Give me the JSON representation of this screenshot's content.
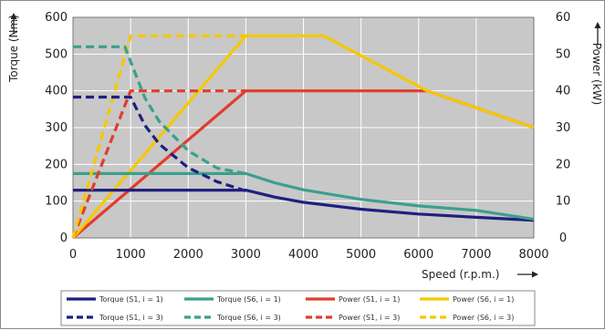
{
  "chart_data": {
    "type": "line",
    "xlabel": "Speed (r.p.m.)",
    "ylabel": "Torque (Nm)",
    "y2label": "Power (kW)",
    "xlim": [
      0,
      8000
    ],
    "ylim": [
      0,
      600
    ],
    "y2lim": [
      0,
      60
    ],
    "x_ticks": [
      "0",
      "1000",
      "2000",
      "3000",
      "4000",
      "5000",
      "6000",
      "7000",
      "8000"
    ],
    "y_ticks": [
      "0",
      "100",
      "200",
      "300",
      "400",
      "500",
      "600"
    ],
    "y2_ticks": [
      "0",
      "10",
      "20",
      "30",
      "40",
      "50",
      "60"
    ],
    "grid": true,
    "plot_background": "#c8c8c8",
    "legend_position": "bottom",
    "series": [
      {
        "name": "Torque (S1, i = 1)",
        "axis": "left",
        "color": "#1f1f80",
        "dash": "solid",
        "x": [
          0,
          3000,
          3500,
          4000,
          5000,
          6000,
          7000,
          8000
        ],
        "y": [
          130,
          130,
          111,
          97,
          78,
          65,
          56,
          48
        ]
      },
      {
        "name": "Torque (S6, i = 1)",
        "axis": "left",
        "color": "#3aa08c",
        "dash": "solid",
        "x": [
          0,
          3000,
          3500,
          4000,
          5000,
          6000,
          7000,
          8000
        ],
        "y": [
          175,
          175,
          150,
          131,
          105,
          87,
          75,
          51
        ]
      },
      {
        "name": "Power (S1, i = 1)",
        "axis": "right",
        "color": "#e23c2c",
        "dash": "solid",
        "x": [
          0,
          3000,
          6150,
          8000
        ],
        "y": [
          0,
          40,
          40,
          30
        ]
      },
      {
        "name": "Power (S6, i = 1)",
        "axis": "right",
        "color": "#f5c800",
        "dash": "solid",
        "x": [
          0,
          3000,
          4350,
          6150,
          8000
        ],
        "y": [
          0,
          55,
          55,
          40,
          30
        ]
      },
      {
        "name": "Torque (S1, i = 3)",
        "axis": "left",
        "color": "#1f1f80",
        "dash": "dashed",
        "x": [
          0,
          1000,
          1250,
          1500,
          2000,
          2500,
          3000
        ],
        "y": [
          383,
          383,
          306,
          255,
          191,
          153,
          128
        ]
      },
      {
        "name": "Torque (S6, i = 3)",
        "axis": "left",
        "color": "#3aa08c",
        "dash": "dashed",
        "x": [
          0,
          900,
          1250,
          1500,
          2000,
          2500,
          3000
        ],
        "y": [
          520,
          520,
          380,
          316,
          237,
          190,
          175
        ]
      },
      {
        "name": "Power (S1, i = 3)",
        "axis": "right",
        "color": "#e23c2c",
        "dash": "dashed",
        "x": [
          0,
          1000,
          3000
        ],
        "y": [
          0,
          40,
          40
        ]
      },
      {
        "name": "Power (S6, i = 3)",
        "axis": "right",
        "color": "#f5c800",
        "dash": "dashed",
        "x": [
          0,
          1000,
          3000
        ],
        "y": [
          0,
          55,
          55
        ]
      }
    ]
  }
}
